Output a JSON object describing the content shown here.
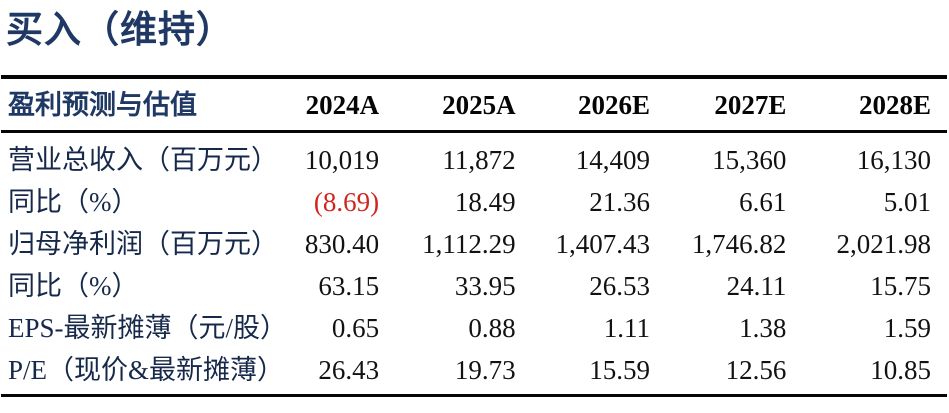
{
  "title": "买入（维持）",
  "colors": {
    "title_navy": "#1f3864",
    "header_navy": "#1f3864",
    "number_black": "#121212",
    "negative_red": "#d02620",
    "rule_black": "#060606"
  },
  "table": {
    "header": {
      "label": "盈利预测与估值",
      "years": [
        "2024A",
        "2025A",
        "2026E",
        "2027E",
        "2028E"
      ]
    },
    "rows": [
      {
        "label": "营业总收入（百万元）",
        "values": [
          "10,019",
          "11,872",
          "14,409",
          "15,360",
          "16,130"
        ]
      },
      {
        "label": "同比（%）",
        "values": [
          "(8.69)",
          "18.49",
          "21.36",
          "6.61",
          "5.01"
        ]
      },
      {
        "label": "归母净利润（百万元）",
        "values": [
          "830.40",
          "1,112.29",
          "1,407.43",
          "1,746.82",
          "2,021.98"
        ]
      },
      {
        "label": "同比（%）",
        "values": [
          "63.15",
          "33.95",
          "26.53",
          "24.11",
          "15.75"
        ]
      },
      {
        "label": "EPS-最新摊薄（元/股）",
        "values": [
          "0.65",
          "0.88",
          "1.11",
          "1.38",
          "1.59"
        ]
      },
      {
        "label": "P/E（现价&最新摊薄）",
        "values": [
          "26.43",
          "19.73",
          "15.59",
          "12.56",
          "10.85"
        ]
      }
    ]
  }
}
